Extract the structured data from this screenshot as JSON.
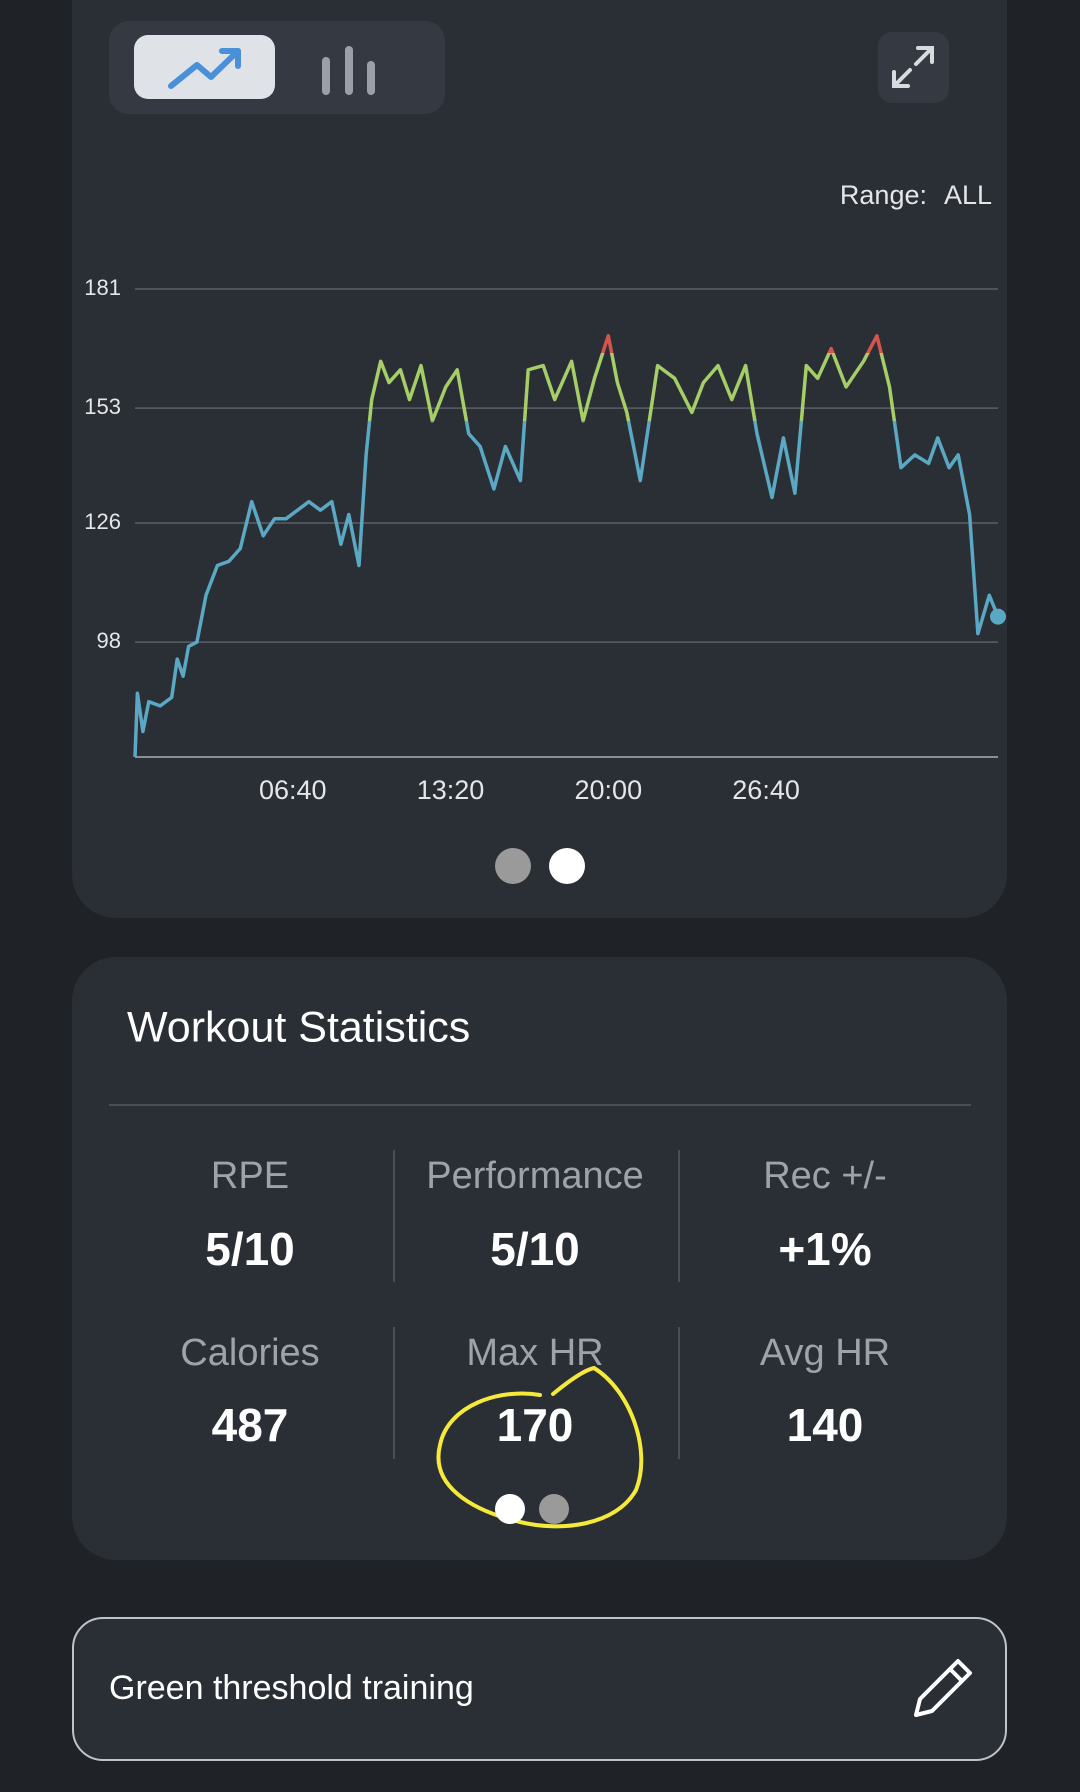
{
  "chart_data": {
    "type": "line",
    "x": [
      0,
      6,
      20,
      35,
      64,
      93,
      107,
      122,
      136,
      157,
      180,
      209,
      238,
      267,
      296,
      325,
      354,
      383,
      412,
      441,
      470,
      499,
      522,
      542,
      568,
      586,
      600,
      623,
      644,
      673,
      696,
      725,
      754,
      788,
      817,
      846,
      875,
      910,
      939,
      977,
      997,
      1035,
      1064,
      1107,
      1136,
      1165,
      1200,
      1223,
      1247,
      1281,
      1325,
      1368,
      1412,
      1441,
      1478,
      1513,
      1548,
      1577,
      1615,
      1644,
      1673,
      1702,
      1731,
      1765,
      1803,
      1847,
      1881,
      1913,
      1942,
      1977,
      2012,
      2035,
      2064,
      2087,
      2116,
      2137,
      2166,
      2188
    ],
    "values": [
      71,
      86,
      77,
      84,
      83,
      85,
      94,
      90,
      97,
      98,
      109,
      116,
      117,
      120,
      131,
      123,
      127,
      127,
      129,
      131,
      129,
      131,
      121,
      128,
      116,
      142,
      155,
      164,
      159,
      162,
      155,
      163,
      150,
      158,
      162,
      147,
      144,
      134,
      144,
      136,
      162,
      163,
      155,
      164,
      150,
      160,
      170,
      159,
      152,
      136,
      163,
      160,
      152,
      159,
      163,
      155,
      163,
      147,
      132,
      146,
      133,
      163,
      160,
      167,
      158,
      164,
      170,
      158,
      139,
      142,
      140,
      146,
      139,
      142,
      128,
      100,
      109,
      104
    ],
    "color": "#5aa8c4",
    "zones": [
      {
        "above": 166,
        "color": "#d4554e"
      },
      {
        "above": 150,
        "color": "#a5cd68"
      }
    ],
    "xlim": [
      0,
      2188
    ],
    "xticks": [
      {
        "value": 400,
        "label": "06:40"
      },
      {
        "value": 800,
        "label": "13:20"
      },
      {
        "value": 1200,
        "label": "20:00"
      },
      {
        "value": 1600,
        "label": "26:40"
      }
    ],
    "ylim": [
      71,
      181
    ],
    "yticks": [
      98,
      126,
      153,
      181
    ],
    "grid": true
  },
  "range": {
    "label": "Range:",
    "value": "ALL"
  },
  "statistics": {
    "title": "Workout Statistics",
    "items": [
      {
        "label": "RPE",
        "value": "5/10"
      },
      {
        "label": "Performance",
        "value": "5/10"
      },
      {
        "label": "Rec +/-",
        "value": "+1%"
      },
      {
        "label": "Calories",
        "value": 487
      },
      {
        "label": "Max HR",
        "value": 170
      },
      {
        "label": "Avg HR",
        "value": 140
      }
    ]
  },
  "note": "Green threshold training"
}
